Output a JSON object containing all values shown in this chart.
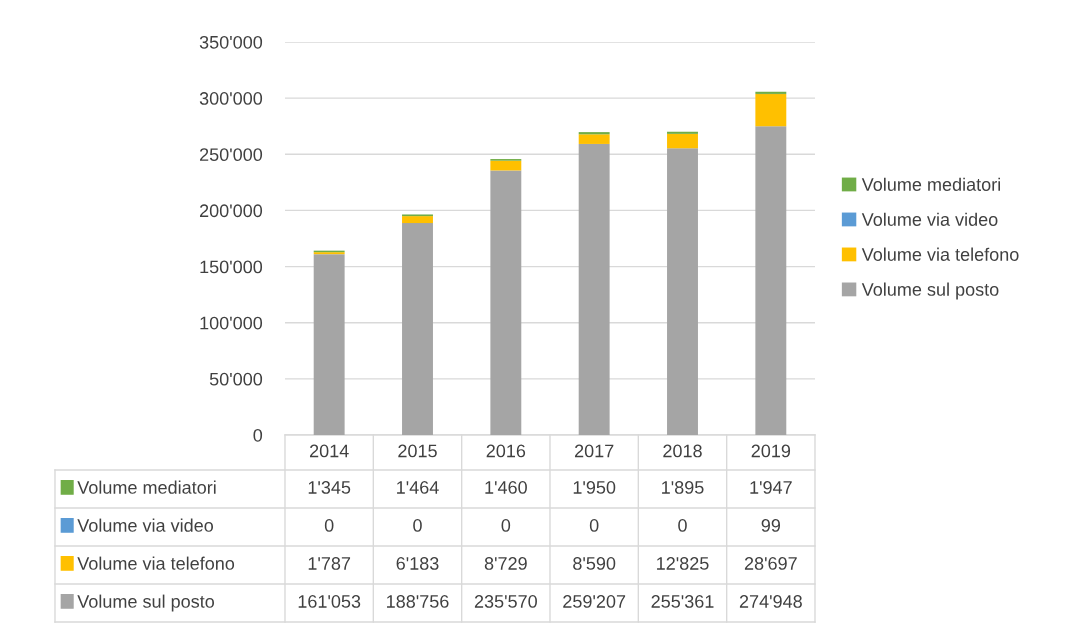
{
  "chart_data": {
    "type": "bar",
    "stacked": true,
    "categories": [
      "2014",
      "2015",
      "2016",
      "2017",
      "2018",
      "2019"
    ],
    "series": [
      {
        "name": "Volume sul posto",
        "color": "#a5a5a5",
        "values": [
          161053,
          188756,
          235570,
          259207,
          255361,
          274948
        ],
        "value_labels": [
          "161'053",
          "188'756",
          "235'570",
          "259'207",
          "255'361",
          "274'948"
        ]
      },
      {
        "name": "Volume via telefono",
        "color": "#ffc000",
        "values": [
          1787,
          6183,
          8729,
          8590,
          12825,
          28697
        ],
        "value_labels": [
          "1'787",
          "6'183",
          "8'729",
          "8'590",
          "12'825",
          "28'697"
        ]
      },
      {
        "name": "Volume via video",
        "color": "#5b9bd5",
        "values": [
          0,
          0,
          0,
          0,
          0,
          99
        ],
        "value_labels": [
          "0",
          "0",
          "0",
          "0",
          "0",
          "99"
        ]
      },
      {
        "name": "Volume mediatori",
        "color": "#70ad47",
        "values": [
          1345,
          1464,
          1460,
          1950,
          1895,
          1947
        ],
        "value_labels": [
          "1'345",
          "1'464",
          "1'460",
          "1'950",
          "1'895",
          "1'947"
        ]
      }
    ],
    "ylim": [
      0,
      350000
    ],
    "yticks": [
      {
        "value": 0,
        "label": "0"
      },
      {
        "value": 50000,
        "label": "50'000"
      },
      {
        "value": 100000,
        "label": "100'000"
      },
      {
        "value": 150000,
        "label": "150'000"
      },
      {
        "value": 200000,
        "label": "200'000"
      },
      {
        "value": 250000,
        "label": "250'000"
      },
      {
        "value": 300000,
        "label": "300'000"
      },
      {
        "value": 350000,
        "label": "350'000"
      }
    ],
    "grid": "y",
    "legend": "right"
  }
}
